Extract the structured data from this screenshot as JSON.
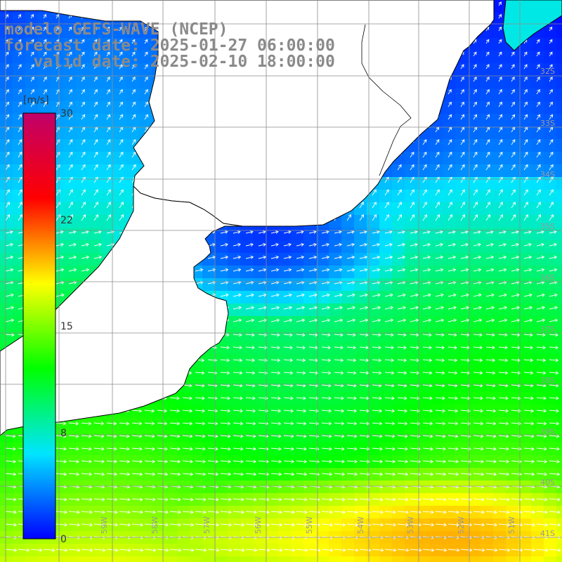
{
  "title": {
    "line1": "modelo GEFS-WAVE (NCEP)",
    "line2": "forecast date: 2025-01-27 06:00:00",
    "line3": "   valid date: 2025-02-10 18:00:00"
  },
  "colorbar": {
    "unit": "[m/s]",
    "ticks": [
      "30",
      "22",
      "15",
      "8",
      "0"
    ],
    "range": [
      0,
      30
    ],
    "stops": [
      "#0000ff",
      "#00e5ff",
      "#00ff00",
      "#ffff00",
      "#ff0000",
      "#c0006a"
    ]
  },
  "grid": {
    "lat_labels": [
      "32S",
      "33S",
      "34S",
      "35S",
      "36S",
      "37S",
      "38S",
      "39S",
      "40S",
      "41S"
    ],
    "lon_labels": [
      "60W",
      "59W",
      "58W",
      "57W",
      "56W",
      "55W",
      "54W",
      "53W",
      "52W",
      "51W"
    ]
  },
  "colors": {
    "land": "#ffffff",
    "coastline": "#000000",
    "gridline": "#8c8c8c",
    "title_text": "#8a8a8a",
    "arrow": "#ffffff"
  }
}
